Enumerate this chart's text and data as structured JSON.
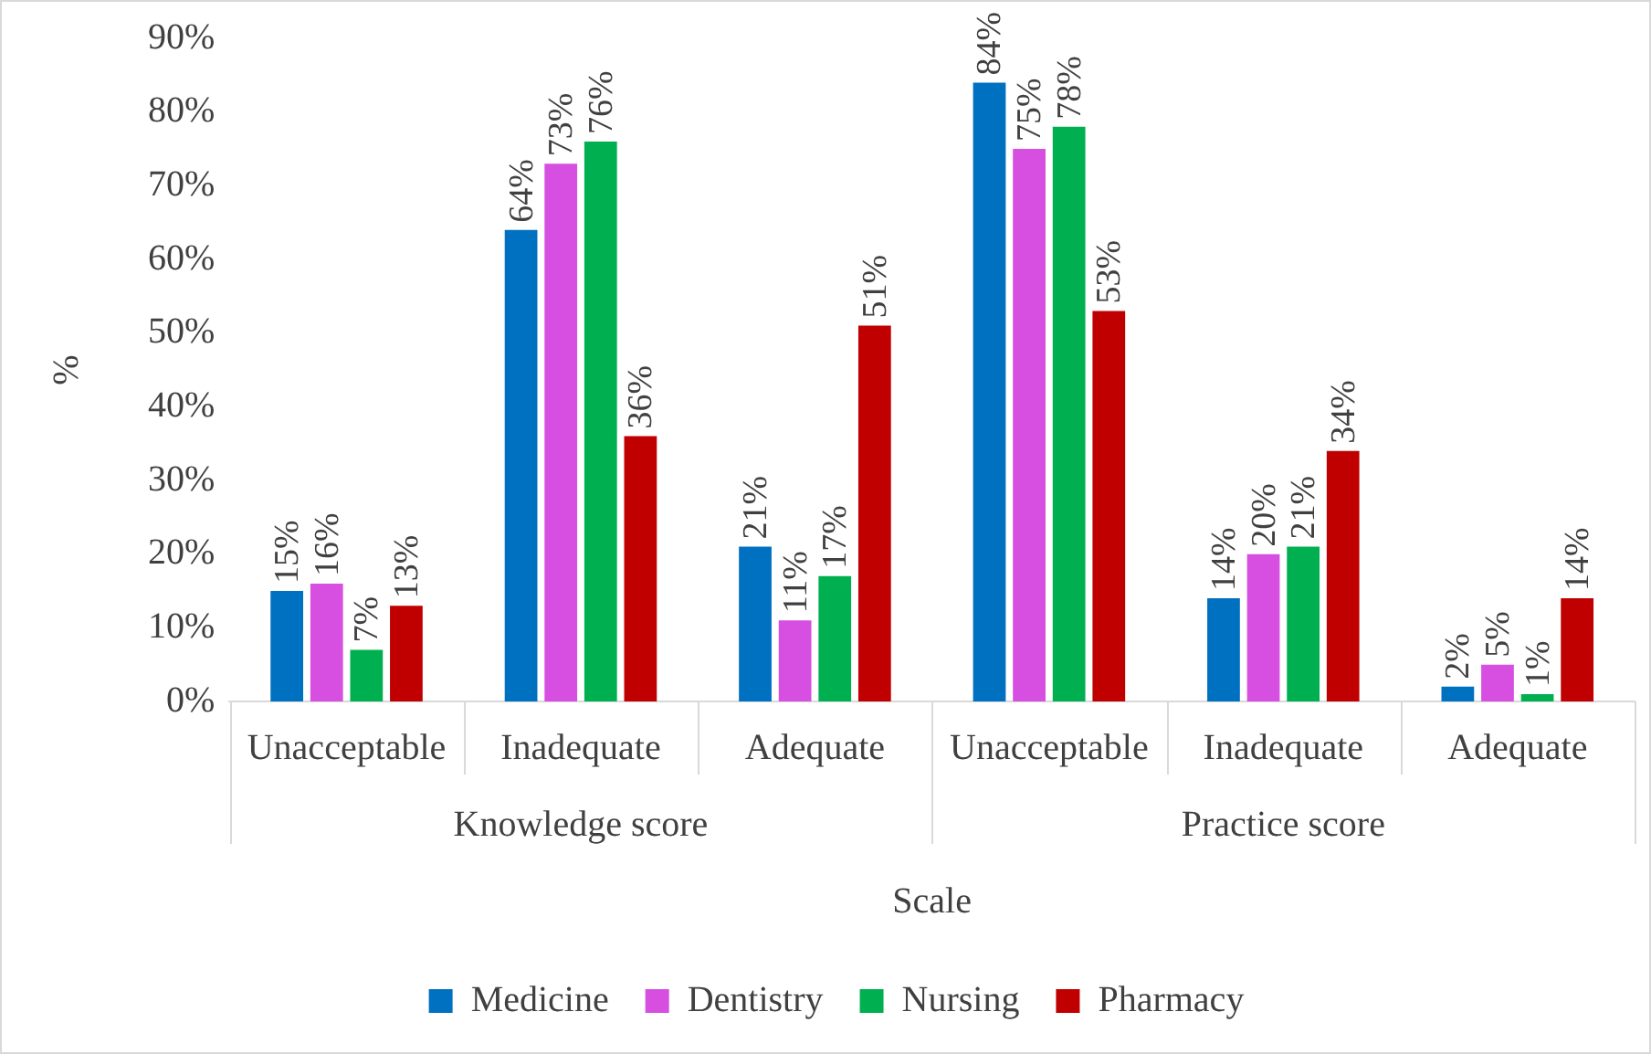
{
  "chart_data": {
    "type": "bar",
    "ylabel": "%",
    "xlabel": "Scale",
    "categories": [
      "Unacceptable",
      "Inadequate",
      "Adequate",
      "Unacceptable",
      "Inadequate",
      "Adequate"
    ],
    "annotations": [
      "Knowledge score",
      "Practice score"
    ],
    "series": [
      {
        "name": "Medicine",
        "color": "#0070c0",
        "values": [
          15,
          64,
          21,
          84,
          14,
          2
        ],
        "value_labels": [
          "15%",
          "64%",
          "21%",
          "84%",
          "14%",
          "2%"
        ]
      },
      {
        "name": "Dentistry",
        "color": "#d64fe0",
        "values": [
          16,
          73,
          11,
          75,
          20,
          5
        ],
        "value_labels": [
          "16%",
          "73%",
          "11%",
          "75%",
          "20%",
          "5%"
        ]
      },
      {
        "name": "Nursing",
        "color": "#00b050",
        "values": [
          7,
          76,
          17,
          78,
          21,
          1
        ],
        "value_labels": [
          "7%",
          "76%",
          "17%",
          "78%",
          "21%",
          "1%"
        ]
      },
      {
        "name": "Pharmacy",
        "color": "#c00000",
        "values": [
          13,
          36,
          51,
          53,
          34,
          14
        ],
        "value_labels": [
          "13%",
          "36%",
          "51%",
          "53%",
          "34%",
          "14%"
        ]
      }
    ],
    "ylim": [
      0,
      90
    ],
    "yticks": [
      {
        "value": 0,
        "label": "0%"
      },
      {
        "value": 10,
        "label": "10%"
      },
      {
        "value": 20,
        "label": "20%"
      },
      {
        "value": 30,
        "label": "30%"
      },
      {
        "value": 40,
        "label": "40%"
      },
      {
        "value": 50,
        "label": "50%"
      },
      {
        "value": 60,
        "label": "60%"
      },
      {
        "value": 70,
        "label": "70%"
      },
      {
        "value": 80,
        "label": "80%"
      },
      {
        "value": 90,
        "label": "90%"
      }
    ],
    "grid": false,
    "legend": "bottom"
  }
}
